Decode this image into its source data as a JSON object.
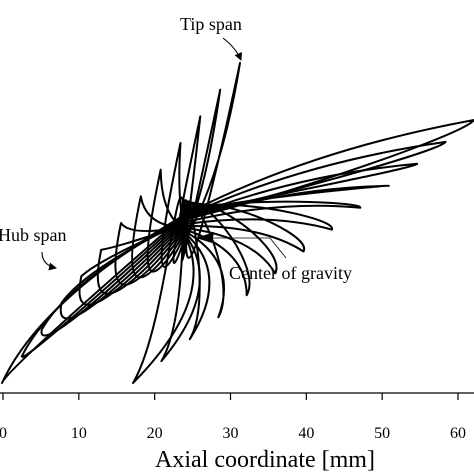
{
  "chart_data": {
    "type": "line",
    "xlabel": "Axial coordinate [mm]",
    "xlim": [
      0,
      62
    ],
    "x_ticks": [
      "0",
      "10",
      "20",
      "30",
      "40",
      "50",
      "60"
    ],
    "y_hidden": true,
    "grid": false,
    "section_count": 13,
    "annotations": {
      "tip": "Tip span",
      "hub": "Hub span",
      "cog": "Center of gravity"
    }
  }
}
